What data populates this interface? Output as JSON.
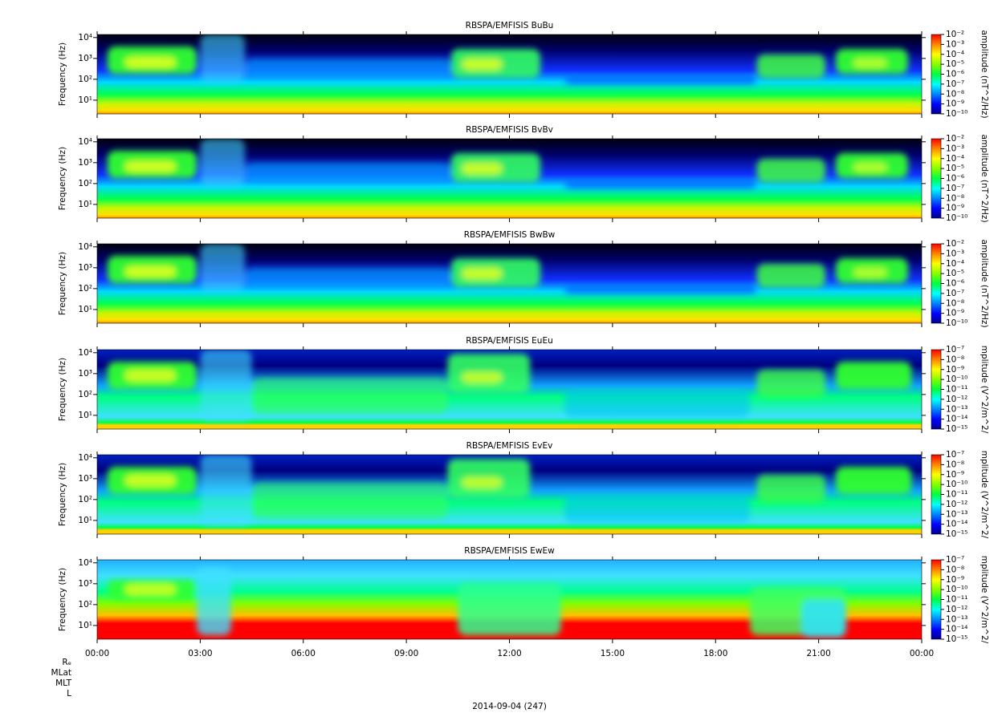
{
  "chart_data": [
    {
      "type": "spectrogram",
      "title": "RBSPA/EMFISIS  BuBu",
      "ylabel": "Frequency (Hz)",
      "ylog": true,
      "ylim": [
        2.2,
        14000
      ],
      "yticks": [
        {
          "value": 10,
          "label": "10¹"
        },
        {
          "value": 100,
          "label": "10²"
        },
        {
          "value": 1000,
          "label": "10³"
        },
        {
          "value": 10000,
          "label": "10⁴"
        }
      ],
      "colorbar_label": "amplitude (nT^2/Hz)",
      "colorbar_log": true,
      "colorbar_lim": [
        1e-10,
        0.01
      ],
      "colorbar_ticks": [
        {
          "value": 0.01,
          "label": "10⁻²"
        },
        {
          "value": 0.001,
          "label": "10⁻³"
        },
        {
          "value": 0.0001,
          "label": "10⁻⁴"
        },
        {
          "value": 1e-05,
          "label": "10⁻⁵"
        },
        {
          "value": 1e-06,
          "label": "10⁻⁶"
        },
        {
          "value": 1e-07,
          "label": "10⁻⁷"
        },
        {
          "value": 1e-08,
          "label": "10⁻⁸"
        },
        {
          "value": 1e-09,
          "label": "10⁻⁹"
        },
        {
          "value": 1e-10,
          "label": "10⁻¹⁰"
        }
      ]
    },
    {
      "type": "spectrogram",
      "title": "RBSPA/EMFISIS  BvBv",
      "ylabel": "Frequency (Hz)",
      "ylog": true,
      "ylim": [
        2.2,
        14000
      ],
      "yticks": [
        {
          "value": 10,
          "label": "10¹"
        },
        {
          "value": 100,
          "label": "10²"
        },
        {
          "value": 1000,
          "label": "10³"
        },
        {
          "value": 10000,
          "label": "10⁴"
        }
      ],
      "colorbar_label": "amplitude (nT^2/Hz)",
      "colorbar_log": true,
      "colorbar_lim": [
        1e-10,
        0.01
      ],
      "colorbar_ticks": [
        {
          "value": 0.01,
          "label": "10⁻²"
        },
        {
          "value": 0.001,
          "label": "10⁻³"
        },
        {
          "value": 0.0001,
          "label": "10⁻⁴"
        },
        {
          "value": 1e-05,
          "label": "10⁻⁵"
        },
        {
          "value": 1e-06,
          "label": "10⁻⁶"
        },
        {
          "value": 1e-07,
          "label": "10⁻⁷"
        },
        {
          "value": 1e-08,
          "label": "10⁻⁸"
        },
        {
          "value": 1e-09,
          "label": "10⁻⁹"
        },
        {
          "value": 1e-10,
          "label": "10⁻¹⁰"
        }
      ]
    },
    {
      "type": "spectrogram",
      "title": "RBSPA/EMFISIS  BwBw",
      "ylabel": "Frequency (Hz)",
      "ylog": true,
      "ylim": [
        2.2,
        14000
      ],
      "yticks": [
        {
          "value": 10,
          "label": "10¹"
        },
        {
          "value": 100,
          "label": "10²"
        },
        {
          "value": 1000,
          "label": "10³"
        },
        {
          "value": 10000,
          "label": "10⁴"
        }
      ],
      "colorbar_label": "amplitude (nT^2/Hz)",
      "colorbar_log": true,
      "colorbar_lim": [
        1e-10,
        0.01
      ],
      "colorbar_ticks": [
        {
          "value": 0.01,
          "label": "10⁻²"
        },
        {
          "value": 0.001,
          "label": "10⁻³"
        },
        {
          "value": 0.0001,
          "label": "10⁻⁴"
        },
        {
          "value": 1e-05,
          "label": "10⁻⁵"
        },
        {
          "value": 1e-06,
          "label": "10⁻⁶"
        },
        {
          "value": 1e-07,
          "label": "10⁻⁷"
        },
        {
          "value": 1e-08,
          "label": "10⁻⁸"
        },
        {
          "value": 1e-09,
          "label": "10⁻⁹"
        },
        {
          "value": 1e-10,
          "label": "10⁻¹⁰"
        }
      ]
    },
    {
      "type": "spectrogram",
      "title": "RBSPA/EMFISIS  EuEu",
      "ylabel": "Frequency (Hz)",
      "ylog": true,
      "ylim": [
        2.2,
        14000
      ],
      "yticks": [
        {
          "value": 10,
          "label": "10¹"
        },
        {
          "value": 100,
          "label": "10²"
        },
        {
          "value": 1000,
          "label": "10³"
        },
        {
          "value": 10000,
          "label": "10⁴"
        }
      ],
      "colorbar_label": "mplitude (V^2/m^2/",
      "colorbar_log": true,
      "colorbar_lim": [
        1e-15,
        1e-07
      ],
      "colorbar_ticks": [
        {
          "value": 1e-07,
          "label": "10⁻⁷"
        },
        {
          "value": 1e-08,
          "label": "10⁻⁸"
        },
        {
          "value": 1e-09,
          "label": "10⁻⁹"
        },
        {
          "value": 1e-10,
          "label": "10⁻¹⁰"
        },
        {
          "value": 1e-11,
          "label": "10⁻¹¹"
        },
        {
          "value": 1e-12,
          "label": "10⁻¹²"
        },
        {
          "value": 1e-13,
          "label": "10⁻¹³"
        },
        {
          "value": 1e-14,
          "label": "10⁻¹⁴"
        },
        {
          "value": 1e-15,
          "label": "10⁻¹⁵"
        }
      ]
    },
    {
      "type": "spectrogram",
      "title": "RBSPA/EMFISIS  EvEv",
      "ylabel": "Frequency (Hz)",
      "ylog": true,
      "ylim": [
        2.2,
        14000
      ],
      "yticks": [
        {
          "value": 10,
          "label": "10¹"
        },
        {
          "value": 100,
          "label": "10²"
        },
        {
          "value": 1000,
          "label": "10³"
        },
        {
          "value": 10000,
          "label": "10⁴"
        }
      ],
      "colorbar_label": "mplitude (V^2/m^2/",
      "colorbar_log": true,
      "colorbar_lim": [
        1e-15,
        1e-07
      ],
      "colorbar_ticks": [
        {
          "value": 1e-07,
          "label": "10⁻⁷"
        },
        {
          "value": 1e-08,
          "label": "10⁻⁸"
        },
        {
          "value": 1e-09,
          "label": "10⁻⁹"
        },
        {
          "value": 1e-10,
          "label": "10⁻¹⁰"
        },
        {
          "value": 1e-11,
          "label": "10⁻¹¹"
        },
        {
          "value": 1e-12,
          "label": "10⁻¹²"
        },
        {
          "value": 1e-13,
          "label": "10⁻¹³"
        },
        {
          "value": 1e-14,
          "label": "10⁻¹⁴"
        },
        {
          "value": 1e-15,
          "label": "10⁻¹⁵"
        }
      ]
    },
    {
      "type": "spectrogram",
      "title": "RBSPA/EMFISIS  EwEw",
      "ylabel": "Frequency (Hz)",
      "ylog": true,
      "ylim": [
        2.2,
        14000
      ],
      "yticks": [
        {
          "value": 10,
          "label": "10¹"
        },
        {
          "value": 100,
          "label": "10²"
        },
        {
          "value": 1000,
          "label": "10³"
        },
        {
          "value": 10000,
          "label": "10⁴"
        }
      ],
      "colorbar_label": "mplitude (V^2/m^2/",
      "colorbar_log": true,
      "colorbar_lim": [
        1e-15,
        1e-07
      ],
      "colorbar_ticks": [
        {
          "value": 1e-07,
          "label": "10⁻⁷"
        },
        {
          "value": 1e-08,
          "label": "10⁻⁸"
        },
        {
          "value": 1e-09,
          "label": "10⁻⁹"
        },
        {
          "value": 1e-10,
          "label": "10⁻¹⁰"
        },
        {
          "value": 1e-11,
          "label": "10⁻¹¹"
        },
        {
          "value": 1e-12,
          "label": "10⁻¹²"
        },
        {
          "value": 1e-13,
          "label": "10⁻¹³"
        },
        {
          "value": 1e-14,
          "label": "10⁻¹⁴"
        },
        {
          "value": 1e-15,
          "label": "10⁻¹⁵"
        }
      ]
    }
  ],
  "x_axis": {
    "xlim": [
      0,
      24
    ],
    "xticks": [
      {
        "value": 0,
        "label": "00:00"
      },
      {
        "value": 3,
        "label": "03:00"
      },
      {
        "value": 6,
        "label": "06:00"
      },
      {
        "value": 9,
        "label": "09:00"
      },
      {
        "value": 12,
        "label": "12:00"
      },
      {
        "value": 15,
        "label": "15:00"
      },
      {
        "value": 18,
        "label": "18:00"
      },
      {
        "value": 21,
        "label": "21:00"
      },
      {
        "value": 24,
        "label": "00:00"
      }
    ]
  },
  "ephemeris_labels": [
    "Rₑ",
    "MLat",
    "MLT",
    "L"
  ],
  "date": "2014-09-04 (247)"
}
